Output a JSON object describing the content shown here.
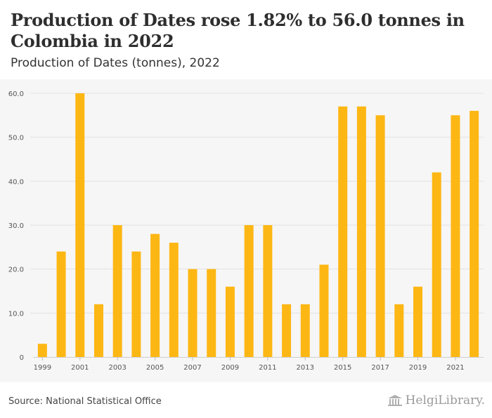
{
  "header": {
    "title": "Production of Dates rose 1.82% to 56.0 tonnes in Colombia in 2022",
    "subtitle": "Production of Dates (tonnes), 2022"
  },
  "footer": {
    "source": "Source: National Statistical Office",
    "brand": "HelgiLibrary."
  },
  "colors": {
    "bar": "#fdb714",
    "plot_bg": "#f6f6f6",
    "grid": "#e2e2e2"
  },
  "chart_data": {
    "type": "bar",
    "title": "Production of Dates rose 1.82% to 56.0 tonnes in Colombia in 2022",
    "subtitle": "Production of Dates (tonnes), 2022",
    "xlabel": "",
    "ylabel": "",
    "categories": [
      "1999",
      "2000",
      "2001",
      "2002",
      "2003",
      "2004",
      "2005",
      "2006",
      "2007",
      "2008",
      "2009",
      "2010",
      "2011",
      "2012",
      "2013",
      "2014",
      "2015",
      "2016",
      "2017",
      "2018",
      "2019",
      "2020",
      "2021",
      "2022"
    ],
    "values": [
      3,
      24,
      60,
      12,
      30,
      24,
      28,
      26,
      20,
      20,
      16,
      30,
      30,
      12,
      12,
      21,
      57,
      57,
      55,
      12,
      16,
      42,
      55,
      56
    ],
    "x_tick_labels": [
      "1999",
      "2001",
      "2003",
      "2005",
      "2007",
      "2009",
      "2011",
      "2013",
      "2015",
      "2017",
      "2019",
      "2021"
    ],
    "y_ticks": [
      0,
      10,
      20,
      30,
      40,
      50,
      60
    ],
    "y_tick_labels": [
      "0",
      "10.0",
      "20.0",
      "30.0",
      "40.0",
      "50.0",
      "60.0"
    ],
    "ylim": [
      0,
      60
    ],
    "grid": true,
    "legend": "none"
  }
}
